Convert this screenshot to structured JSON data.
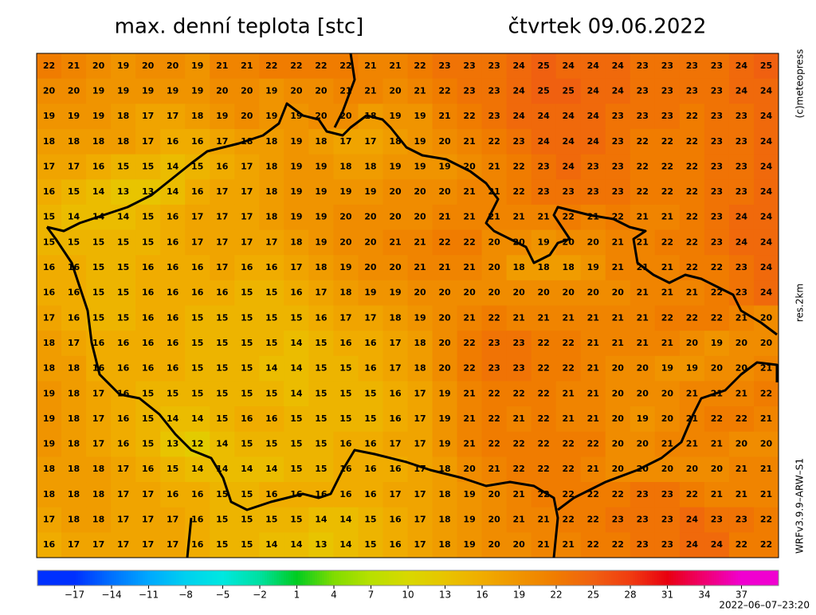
{
  "header": {
    "title": "max. denní teplota [stc]",
    "date": "čtvrtek 09.06.2022"
  },
  "side_labels": [
    "(c)meteopress",
    "res.2km",
    "WRFv3.9.9–ARW–S1"
  ],
  "timestamp": "2022–06–07–23:20",
  "map": {
    "values": [
      [
        22,
        21,
        20,
        19,
        20,
        20,
        19,
        21,
        21,
        22,
        22,
        22,
        22,
        21,
        21,
        22,
        23,
        23,
        23,
        24,
        25,
        24,
        24,
        24,
        23,
        23,
        23,
        23,
        24,
        25
      ],
      [
        20,
        20,
        19,
        19,
        19,
        19,
        19,
        20,
        20,
        19,
        20,
        20,
        21,
        21,
        20,
        21,
        22,
        23,
        23,
        24,
        25,
        25,
        24,
        24,
        23,
        23,
        23,
        23,
        24,
        24
      ],
      [
        19,
        19,
        19,
        18,
        17,
        17,
        18,
        19,
        20,
        19,
        19,
        20,
        20,
        18,
        19,
        19,
        21,
        22,
        23,
        24,
        24,
        24,
        24,
        23,
        23,
        23,
        22,
        23,
        23,
        24
      ],
      [
        18,
        18,
        18,
        18,
        17,
        16,
        16,
        17,
        18,
        18,
        19,
        18,
        17,
        17,
        18,
        19,
        20,
        21,
        22,
        23,
        24,
        24,
        24,
        23,
        22,
        22,
        22,
        23,
        23,
        24
      ],
      [
        17,
        17,
        16,
        15,
        15,
        14,
        15,
        16,
        17,
        18,
        19,
        19,
        18,
        18,
        19,
        19,
        19,
        20,
        21,
        22,
        23,
        24,
        23,
        23,
        22,
        22,
        22,
        23,
        23,
        24
      ],
      [
        16,
        15,
        14,
        13,
        13,
        14,
        16,
        17,
        17,
        18,
        19,
        19,
        19,
        19,
        20,
        20,
        20,
        21,
        21,
        22,
        23,
        23,
        23,
        23,
        22,
        22,
        22,
        23,
        23,
        24
      ],
      [
        15,
        14,
        14,
        14,
        15,
        16,
        17,
        17,
        17,
        18,
        19,
        19,
        20,
        20,
        20,
        20,
        21,
        21,
        21,
        21,
        21,
        22,
        21,
        22,
        21,
        21,
        22,
        23,
        24,
        24
      ],
      [
        15,
        15,
        15,
        15,
        15,
        16,
        17,
        17,
        17,
        17,
        18,
        19,
        20,
        20,
        21,
        21,
        22,
        22,
        20,
        20,
        19,
        20,
        20,
        21,
        21,
        22,
        22,
        23,
        24,
        24
      ],
      [
        16,
        16,
        15,
        15,
        16,
        16,
        16,
        17,
        16,
        16,
        17,
        18,
        19,
        20,
        20,
        21,
        21,
        21,
        20,
        18,
        18,
        18,
        19,
        21,
        21,
        21,
        22,
        22,
        23,
        24
      ],
      [
        16,
        16,
        15,
        15,
        16,
        16,
        16,
        16,
        15,
        15,
        16,
        17,
        18,
        19,
        19,
        20,
        20,
        20,
        20,
        20,
        20,
        20,
        20,
        20,
        21,
        21,
        21,
        22,
        23,
        24
      ],
      [
        17,
        16,
        15,
        15,
        16,
        16,
        15,
        15,
        15,
        15,
        15,
        16,
        17,
        17,
        18,
        19,
        20,
        21,
        22,
        21,
        21,
        21,
        21,
        21,
        21,
        22,
        22,
        22,
        21,
        20
      ],
      [
        18,
        17,
        16,
        16,
        16,
        16,
        15,
        15,
        15,
        15,
        14,
        15,
        16,
        16,
        17,
        18,
        20,
        22,
        23,
        23,
        22,
        22,
        21,
        21,
        21,
        21,
        20,
        19,
        20,
        20
      ],
      [
        18,
        18,
        16,
        16,
        16,
        16,
        15,
        15,
        15,
        14,
        14,
        15,
        15,
        16,
        17,
        18,
        20,
        22,
        23,
        23,
        22,
        22,
        21,
        20,
        20,
        19,
        19,
        20,
        20,
        21
      ],
      [
        19,
        18,
        17,
        16,
        15,
        15,
        15,
        15,
        15,
        15,
        14,
        15,
        15,
        15,
        16,
        17,
        19,
        21,
        22,
        22,
        22,
        21,
        21,
        20,
        20,
        20,
        21,
        21,
        21,
        22
      ],
      [
        19,
        18,
        17,
        16,
        15,
        14,
        14,
        15,
        16,
        16,
        15,
        15,
        15,
        15,
        16,
        17,
        19,
        21,
        22,
        21,
        22,
        21,
        21,
        20,
        19,
        20,
        21,
        22,
        22,
        21
      ],
      [
        19,
        18,
        17,
        16,
        15,
        13,
        12,
        14,
        15,
        15,
        15,
        15,
        16,
        16,
        17,
        17,
        19,
        21,
        22,
        22,
        22,
        22,
        22,
        20,
        20,
        21,
        21,
        21,
        20,
        20
      ],
      [
        18,
        18,
        18,
        17,
        16,
        15,
        14,
        14,
        14,
        14,
        15,
        15,
        16,
        16,
        16,
        17,
        18,
        20,
        21,
        22,
        22,
        22,
        21,
        20,
        20,
        20,
        20,
        20,
        21,
        21
      ],
      [
        18,
        18,
        18,
        17,
        17,
        16,
        16,
        15,
        15,
        16,
        16,
        16,
        16,
        16,
        17,
        17,
        18,
        19,
        20,
        21,
        22,
        22,
        22,
        22,
        23,
        23,
        22,
        21,
        21,
        21
      ],
      [
        17,
        18,
        18,
        17,
        17,
        17,
        16,
        15,
        15,
        15,
        15,
        14,
        14,
        15,
        16,
        17,
        18,
        19,
        20,
        21,
        21,
        22,
        22,
        23,
        23,
        23,
        24,
        23,
        23,
        22
      ],
      [
        16,
        17,
        17,
        17,
        17,
        17,
        16,
        15,
        15,
        14,
        14,
        13,
        14,
        15,
        16,
        17,
        18,
        19,
        20,
        20,
        21,
        21,
        22,
        22,
        23,
        23,
        24,
        24,
        22,
        22
      ]
    ]
  },
  "colorbar": {
    "lim": [
      -20,
      40
    ],
    "ticks": [
      {
        "value": -17,
        "label": "−17"
      },
      {
        "value": -14,
        "label": "−14"
      },
      {
        "value": -11,
        "label": "−11"
      },
      {
        "value": -8,
        "label": "−8"
      },
      {
        "value": -5,
        "label": "−5"
      },
      {
        "value": -2,
        "label": "−2"
      },
      1,
      4,
      7,
      10,
      13,
      16,
      19,
      22,
      25,
      28,
      31,
      34,
      37
    ],
    "colors": [
      "#0030ff",
      "#0070ff",
      "#00a8ff",
      "#00d0f0",
      "#00e8e0",
      "#00e0a0",
      "#00cc20",
      "#80dc00",
      "#b8e000",
      "#d8d800",
      "#e8c400",
      "#f0ac00",
      "#f09400",
      "#f07c00",
      "#f06010",
      "#f03c10",
      "#e80010",
      "#f00070",
      "#f000d0"
    ]
  }
}
